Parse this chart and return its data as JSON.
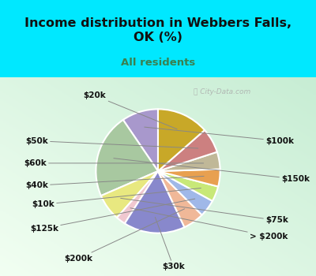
{
  "title": "Income distribution in Webbers Falls,\nOK (%)",
  "subtitle": "All residents",
  "watermark": "ⓘ City-Data.com",
  "labels": [
    "$100k",
    "$150k",
    "$75k",
    "> $200k",
    "$30k",
    "$200k",
    "$125k",
    "$10k",
    "$40k",
    "$60k",
    "$50k",
    "$20k"
  ],
  "sizes": [
    9.5,
    22.0,
    7.0,
    2.5,
    16.0,
    5.5,
    4.5,
    4.0,
    4.5,
    4.5,
    6.5,
    13.5
  ],
  "colors": [
    "#a898cc",
    "#a8c8a0",
    "#e8e880",
    "#f0c8d0",
    "#8888cc",
    "#f0b898",
    "#a0b8e8",
    "#c8e878",
    "#e8a050",
    "#c0b898",
    "#cc8080",
    "#c8a828"
  ],
  "bg_top": "#00e8ff",
  "title_color": "#111111",
  "subtitle_color": "#3a8050",
  "startangle": 90
}
